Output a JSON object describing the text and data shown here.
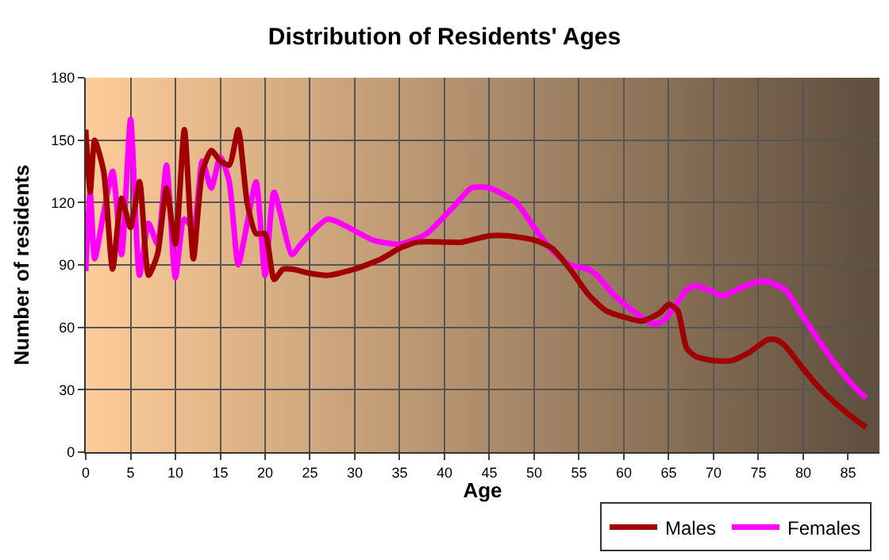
{
  "chart_data": {
    "type": "line",
    "title": "Distribution of Residents' Ages",
    "xlabel": "Age",
    "ylabel": "Number of residents",
    "xlim": [
      0,
      88.5
    ],
    "xticks": [
      0,
      5,
      10,
      15,
      20,
      25,
      30,
      35,
      40,
      45,
      50,
      55,
      60,
      65,
      70,
      75,
      80,
      85
    ],
    "ylim": [
      0,
      180
    ],
    "yticks": [
      0,
      30,
      60,
      90,
      120,
      150,
      180
    ],
    "grid": true,
    "legend": "bottom right",
    "line_style": "solid",
    "marker": "none",
    "series": [
      {
        "name": "Males",
        "color": "#a00000",
        "x": [
          0,
          0.5,
          1,
          2,
          3,
          4,
          5,
          6,
          7,
          8,
          9,
          10,
          11,
          12,
          13,
          14,
          15,
          16,
          17,
          18,
          19,
          20,
          21,
          22,
          23,
          25,
          27,
          30,
          33,
          35,
          37,
          40,
          42,
          45,
          47,
          50,
          52,
          54,
          56,
          58,
          60,
          62,
          64,
          65,
          66,
          67,
          68,
          70,
          72,
          74,
          76,
          77,
          78,
          80,
          82,
          84,
          86,
          87
        ],
        "values": [
          155,
          125,
          150,
          135,
          88,
          122,
          108,
          130,
          85,
          95,
          127,
          100,
          155,
          93,
          135,
          145,
          140,
          138,
          155,
          120,
          105,
          105,
          83,
          88,
          88,
          86,
          85,
          88,
          93,
          98,
          101,
          101,
          101,
          104,
          104,
          102,
          98,
          88,
          76,
          68,
          65,
          63,
          67,
          71,
          68,
          50,
          46,
          44,
          44,
          48,
          54,
          54,
          51,
          40,
          30,
          22,
          15,
          12
        ]
      },
      {
        "name": "Females",
        "color": "#ff00ff",
        "x": [
          0,
          0.5,
          1,
          2,
          3,
          4,
          5,
          6,
          7,
          8,
          9,
          10,
          11,
          12,
          13,
          14,
          15,
          16,
          17,
          18,
          19,
          20,
          21,
          23,
          24,
          27,
          32,
          35,
          38,
          41,
          43,
          45,
          48,
          50,
          52,
          54,
          56,
          57,
          59,
          61,
          63,
          64,
          65,
          67,
          68,
          70,
          71,
          73,
          75,
          76,
          78,
          80,
          82,
          84,
          86,
          87
        ],
        "values": [
          87,
          125,
          93,
          115,
          135,
          95,
          160,
          85,
          110,
          100,
          138,
          84,
          112,
          108,
          140,
          127,
          142,
          130,
          90,
          110,
          130,
          85,
          125,
          95,
          100,
          112,
          102,
          100,
          105,
          118,
          127,
          127,
          120,
          108,
          97,
          90,
          88,
          85,
          75,
          68,
          62,
          62,
          66,
          78,
          80,
          77,
          75,
          79,
          82,
          82,
          78,
          65,
          52,
          40,
          30,
          26
        ]
      }
    ]
  }
}
